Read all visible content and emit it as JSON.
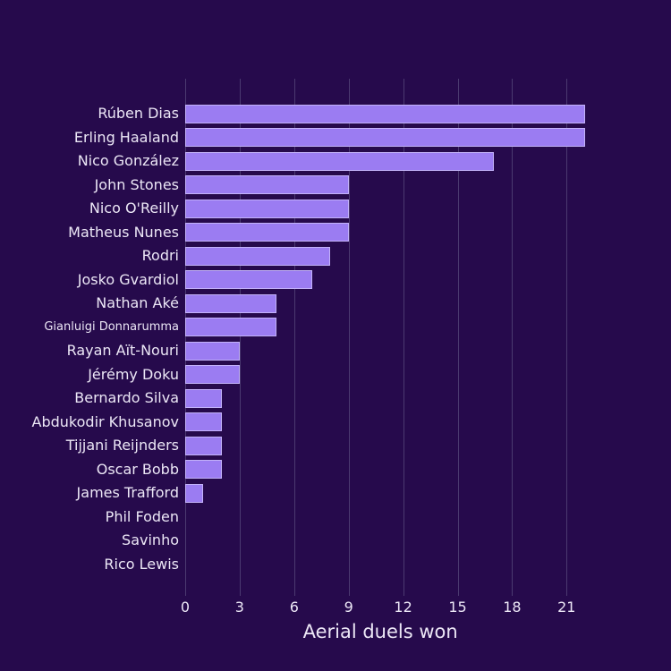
{
  "chart_data": {
    "type": "bar",
    "orientation": "horizontal",
    "xlabel": "Aerial duels won",
    "categories": [
      "Rúben Dias",
      "Erling Haaland",
      "Nico González",
      "John Stones",
      "Nico O'Reilly",
      "Matheus Nunes",
      "Rodri",
      "Josko Gvardiol",
      "Nathan Aké",
      "Gianluigi Donnarumma",
      "Rayan Aït-Nouri",
      "Jérémy Doku",
      "Bernardo Silva",
      "Abdukodir Khusanov",
      "Tijjani Reijnders",
      "Oscar Bobb",
      "James Trafford",
      "Phil Foden",
      "Savinho",
      "Rico Lewis"
    ],
    "values": [
      22,
      22,
      17,
      9,
      9,
      9,
      8,
      7,
      5,
      5,
      3,
      3,
      2,
      2,
      2,
      2,
      1,
      0,
      0,
      0
    ],
    "xticks": [
      0,
      3,
      6,
      9,
      12,
      15,
      18,
      21
    ],
    "xlim": [
      0,
      24
    ],
    "grid": true,
    "legend": null,
    "colors": {
      "background": "#260a4c",
      "bar_fill": "#9b7cf2",
      "bar_border": "#c3b2f9",
      "gridline": "#4b3a70",
      "text": "#ece7f6"
    }
  }
}
